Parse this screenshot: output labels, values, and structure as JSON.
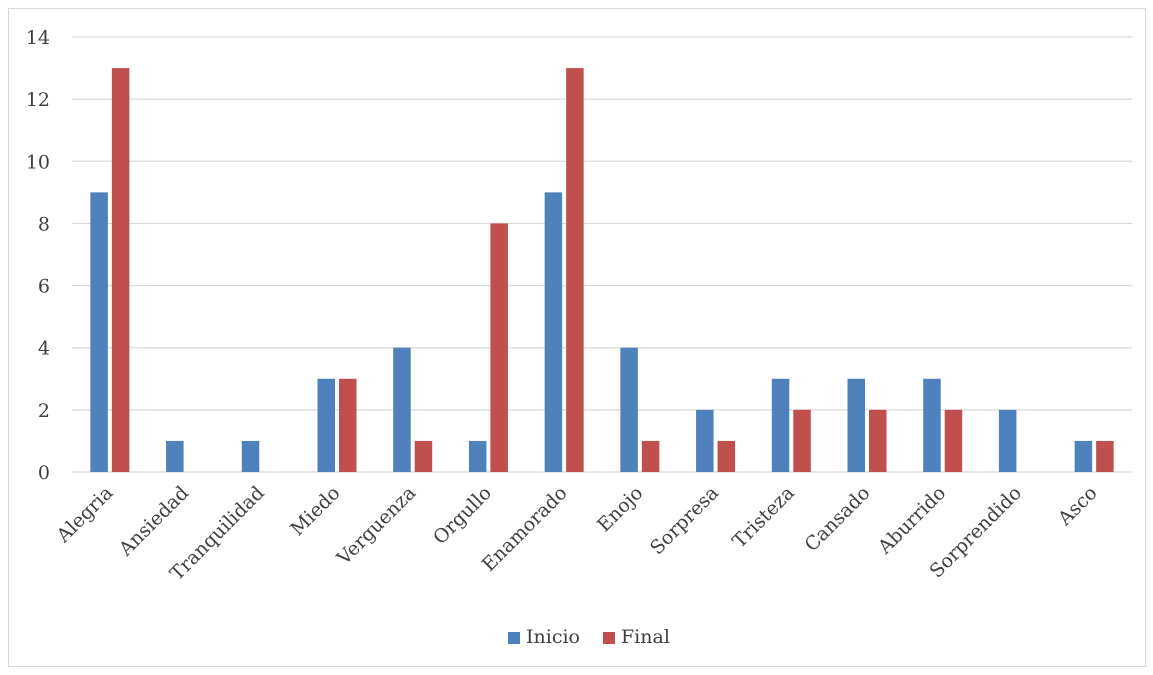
{
  "chart_data": {
    "type": "bar",
    "categories": [
      "Alegria",
      "Ansiedad",
      "Tranquilidad",
      "Miedo",
      "Verguenza",
      "Orgullo",
      "Enamorado",
      "Enojo",
      "Sorpresa",
      "Tristeza",
      "Cansado",
      "Aburrido",
      "Sorprendido",
      "Asco"
    ],
    "series": [
      {
        "name": "Inicio",
        "color": "#4f81bd",
        "values": [
          9,
          1,
          1,
          3,
          4,
          1,
          9,
          4,
          2,
          3,
          3,
          3,
          2,
          1
        ]
      },
      {
        "name": "Final",
        "color": "#c0504d",
        "values": [
          13,
          0,
          0,
          3,
          1,
          8,
          13,
          1,
          1,
          2,
          2,
          2,
          0,
          1
        ]
      }
    ],
    "ylim": [
      0,
      14
    ],
    "yticks": [
      0,
      2,
      4,
      6,
      8,
      10,
      12,
      14
    ],
    "grid": true,
    "legend": "bottom",
    "title": "",
    "xlabel": "",
    "ylabel": ""
  }
}
